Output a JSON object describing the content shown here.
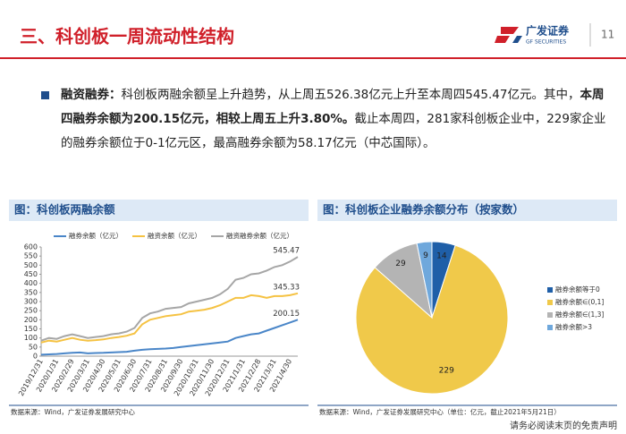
{
  "header": {
    "title": "三、科创板一周流动性结构",
    "logo_cn": "广发证券",
    "logo_en": "GF SECURITIES",
    "page": "11"
  },
  "bullet": {
    "segments": [
      {
        "text": "融资融券：",
        "bold": true
      },
      {
        "text": "科创板两融余额呈上升趋势，从上周五526.38亿元上升至本周四545.47亿元。其中，",
        "bold": false
      },
      {
        "text": "本周四融券余额为200.15亿元，相较上周五上升3.80%。",
        "bold": true
      },
      {
        "text": "截止本周四，281家科创板企业中，229家企业的融券余额位于0-1亿元区，最高融券余额为58.17亿元（中芯国际）。",
        "bold": false
      }
    ]
  },
  "chart_data": [
    {
      "type": "line",
      "title": "图：科创板两融余额",
      "source": "数据来源：Wind，广发证券发展研究中心",
      "categories": [
        "2019/12/31",
        null,
        "2020/1/31",
        null,
        "2020/2/29",
        null,
        "2020/3/31",
        null,
        "2020/4/30",
        null,
        "2020/5/31",
        null,
        "2020/6/30",
        null,
        "2020/7/31",
        null,
        "2020/8/31",
        null,
        "2020/9/30",
        null,
        "2020/10/31",
        null,
        "2020/11/30",
        null,
        "2020/12/31",
        null,
        "2021/1/31",
        null,
        "2021/2/28",
        null,
        "2021/3/31",
        null,
        "2021/4/30",
        null
      ],
      "series": [
        {
          "name": "融券余额（亿元）",
          "color": "#4a86c8",
          "values": [
            8,
            10,
            12,
            15,
            18,
            20,
            15,
            17,
            18,
            20,
            22,
            24,
            30,
            35,
            38,
            40,
            42,
            45,
            50,
            55,
            60,
            65,
            70,
            75,
            80,
            100,
            110,
            120,
            125,
            140,
            155,
            170,
            185,
            200.15
          ]
        },
        {
          "name": "融资余额（亿元）",
          "color": "#f5c242",
          "values": [
            75,
            85,
            80,
            90,
            100,
            90,
            85,
            88,
            92,
            100,
            105,
            112,
            125,
            175,
            200,
            210,
            220,
            225,
            230,
            245,
            250,
            255,
            265,
            280,
            300,
            320,
            320,
            335,
            330,
            320,
            330,
            330,
            335,
            345.33
          ]
        },
        {
          "name": "融资融券余额（亿元）",
          "color": "#a6a6a6",
          "values": [
            85,
            100,
            95,
            110,
            120,
            110,
            100,
            105,
            110,
            120,
            125,
            135,
            155,
            210,
            235,
            245,
            260,
            265,
            270,
            290,
            300,
            310,
            320,
            340,
            370,
            420,
            430,
            450,
            455,
            470,
            490,
            500,
            520,
            545.47
          ]
        }
      ],
      "ylim": [
        0,
        600
      ],
      "yticks": [
        0,
        50,
        100,
        150,
        200,
        250,
        300,
        350,
        400,
        450,
        500,
        550,
        600
      ]
    },
    {
      "type": "pie",
      "title": "图：科创板企业融券余额分布（按家数）",
      "source": "数据来源：Wind，广发证券发展研究中心（单位：亿元，截止2021年5月21日）",
      "categories": [
        "融券余额等于0",
        "融券余额∈(0,1]",
        "融券余额∈(1,3]",
        "融券余额>3"
      ],
      "values": [
        14,
        229,
        29,
        9
      ],
      "colors": [
        "#1f5fa8",
        "#f0c94a",
        "#b4b4b4",
        "#6fa8dc"
      ]
    }
  ],
  "footer": "请务必阅读末页的免责声明"
}
